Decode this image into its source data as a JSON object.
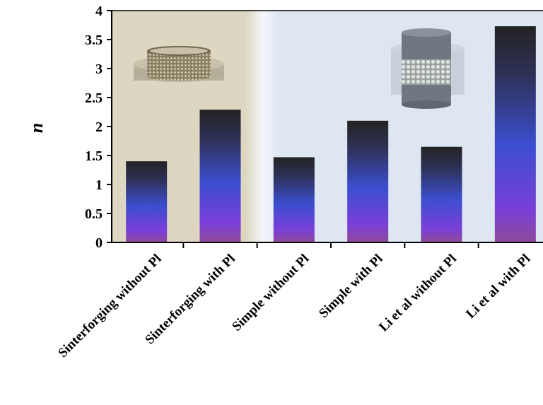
{
  "chart_data": {
    "type": "bar",
    "ylabel": "n",
    "xlabel": "",
    "ylim": [
      0,
      4
    ],
    "yticks": [
      "0",
      "0.5",
      "1",
      "1.5",
      "2",
      "2.5",
      "3",
      "3.5",
      "4"
    ],
    "categories": [
      "Sinterforging without Pl",
      "Sinterforging with Pl",
      "Simple without Pl",
      "Simple with Pl",
      "Li et al without Pl",
      "Li et al with Pl"
    ],
    "values": [
      1.4,
      2.29,
      1.47,
      2.1,
      1.65,
      3.73
    ],
    "grid": false,
    "colors": {
      "bar_top": "#1f1f1f",
      "bar_mid": "#3a4fd0",
      "bar_bottom": "#9a3fd6",
      "panel_left": "#ddd6c1",
      "panel_right": "#dde6f1"
    },
    "insets": [
      "mesh-ring-icon",
      "cylinder-sample-icon"
    ]
  }
}
